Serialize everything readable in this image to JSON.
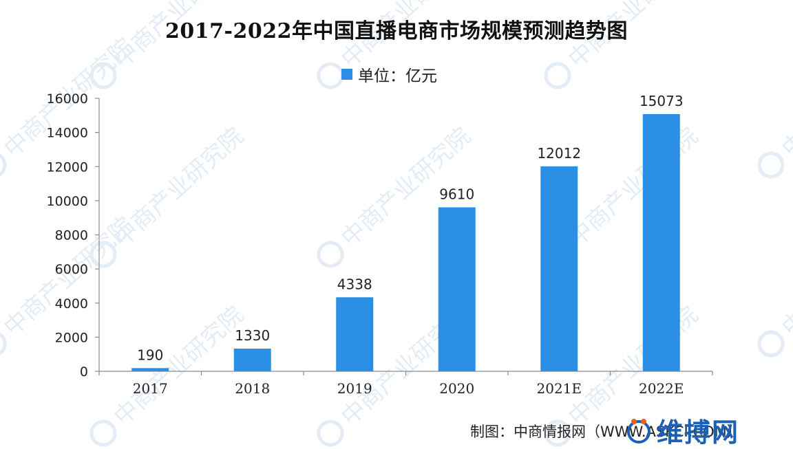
{
  "chart_data": {
    "type": "bar",
    "title": "2017-2022年中国直播电商市场规模预测趋势图",
    "legend": "单位：亿元",
    "categories": [
      "2017",
      "2018",
      "2019",
      "2020",
      "2021E",
      "2022E"
    ],
    "values": [
      190,
      1330,
      4338,
      9610,
      12012,
      15073
    ],
    "data_labels": [
      "190",
      "1330",
      "4338",
      "9610",
      "12012",
      "15073"
    ],
    "y_ticks": [
      "0",
      "2000",
      "4000",
      "6000",
      "8000",
      "10000",
      "12000",
      "14000",
      "16000"
    ],
    "ylim": [
      0,
      16000
    ],
    "grid": false,
    "legend_position": "top-center",
    "bar_color": "#2b8fe6"
  },
  "footer": "制图：中商情报网（WWW.ASKCI.COM）",
  "watermark": "中商产业研究院",
  "brand": "维搏网",
  "colors": {
    "bar": "#2b8fe6",
    "watermark": "#e4ecf6",
    "brand": "#1c5fb3"
  }
}
